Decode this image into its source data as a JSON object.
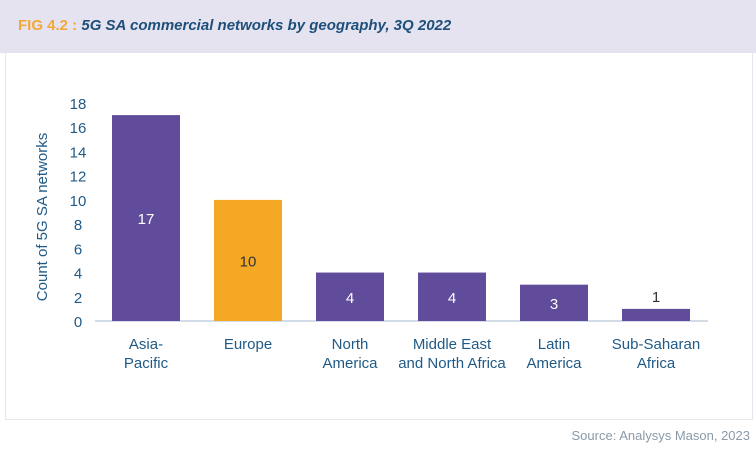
{
  "header": {
    "fig_label": "FIG 4.2 : ",
    "title": "5G SA commercial networks by geography, 3Q 2022"
  },
  "source": "Source: Analysys Mason, 2023",
  "chart_data": {
    "type": "bar",
    "title": "5G SA commercial networks by geography, 3Q 2022",
    "ylabel": "Count of 5G SA networks",
    "xlabel": "",
    "ylim": [
      0,
      18
    ],
    "yticks": [
      0,
      2,
      4,
      6,
      8,
      10,
      12,
      14,
      16,
      18
    ],
    "categories": [
      [
        "Asia-",
        "Pacific"
      ],
      [
        "Europe"
      ],
      [
        "North",
        "America"
      ],
      [
        "Middle East",
        "and North Africa"
      ],
      [
        "Latin",
        "America"
      ],
      [
        "Sub-Saharan",
        "Africa"
      ]
    ],
    "values": [
      17,
      10,
      4,
      4,
      3,
      1
    ],
    "colors": [
      "#604c9a",
      "#f4a823",
      "#604c9a",
      "#604c9a",
      "#604c9a",
      "#604c9a"
    ],
    "grid": false,
    "legend": "none"
  }
}
